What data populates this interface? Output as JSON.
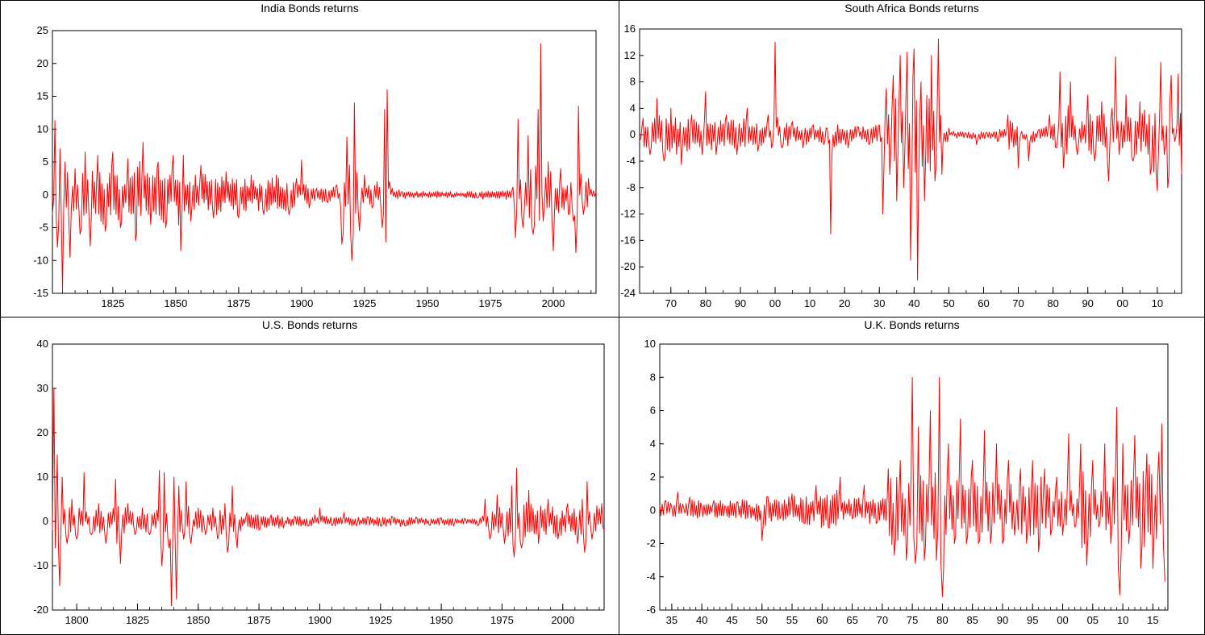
{
  "colors": {
    "series": "#ff0000",
    "axis": "#000000",
    "background": "#ffffff"
  },
  "chart_data": [
    {
      "id": "india",
      "type": "line",
      "title": "India Bonds returns",
      "xlabel": "",
      "ylabel": "",
      "xlim": [
        1801,
        2017
      ],
      "ylim": [
        -15,
        25
      ],
      "yticks": [
        "-15",
        "-10",
        "-5",
        "0",
        "5",
        "10",
        "15",
        "20",
        "25"
      ],
      "xticks": [
        {
          "value": 1825,
          "label": "1825"
        },
        {
          "value": 1850,
          "label": "1850"
        },
        {
          "value": 1875,
          "label": "1875"
        },
        {
          "value": 1900,
          "label": "1900"
        },
        {
          "value": 1925,
          "label": "1925"
        },
        {
          "value": 1950,
          "label": "1950"
        },
        {
          "value": 1975,
          "label": "1975"
        },
        {
          "value": 2000,
          "label": "2000"
        }
      ],
      "grid": false,
      "series": [
        {
          "x": [
            1801,
            1802,
            1803,
            1804,
            1805,
            1806,
            1808,
            1810,
            1812,
            1814,
            1816,
            1819,
            1822,
            1825,
            1828,
            1831,
            1834,
            1837,
            1840,
            1843,
            1846,
            1849,
            1852,
            1853,
            1856,
            1860,
            1865,
            1870,
            1875,
            1880,
            1885,
            1890,
            1895,
            1898,
            1900,
            1903,
            1906,
            1910,
            1914,
            1916,
            1918,
            1920,
            1921,
            1923,
            1925,
            1928,
            1930,
            1932,
            1933,
            1934,
            1936,
            1940,
            1945,
            1950,
            1955,
            1960,
            1965,
            1970,
            1975,
            1980,
            1984,
            1985,
            1986,
            1988,
            1990,
            1992,
            1994,
            1995,
            1996,
            1998,
            2000,
            2003,
            2006,
            2008,
            2009,
            2010,
            2012,
            2014,
            2016,
            2017
          ],
          "y": [
            -3,
            11.3,
            -8,
            7,
            -14.5,
            5,
            -9.5,
            4,
            -6,
            6.5,
            -7.8,
            6,
            -5.5,
            6.5,
            -5,
            5.5,
            -7,
            8,
            -4.5,
            5,
            -5,
            6,
            -8.5,
            6,
            -4,
            4.5,
            -3.5,
            3.5,
            -3.5,
            3,
            -3,
            3,
            -3,
            2.5,
            5.3,
            -2,
            1,
            -1,
            1.5,
            -7.5,
            8.8,
            -10,
            14,
            -5.5,
            3,
            -2,
            2,
            -5,
            13,
            16,
            1,
            0.5,
            0.3,
            0.2,
            0.4,
            0.1,
            0.2,
            -0.5,
            0.4,
            0.6,
            1.2,
            -6.5,
            11.5,
            -5,
            9,
            -6,
            13,
            23,
            -4,
            5,
            -8.5,
            4,
            -3,
            -4,
            -8.8,
            13.5,
            -3,
            2.5,
            0.6,
            0.4
          ]
        }
      ]
    },
    {
      "id": "south_africa",
      "type": "line",
      "title": "South Africa Bonds returns",
      "xlabel": "",
      "ylabel": "",
      "xlim": [
        1861,
        2017
      ],
      "ylim": [
        -24,
        16
      ],
      "yticks": [
        "-24",
        "-20",
        "-16",
        "-12",
        "-8",
        "-4",
        "0",
        "4",
        "8",
        "12",
        "16"
      ],
      "xticks": [
        {
          "value": 1870,
          "label": "70"
        },
        {
          "value": 1880,
          "label": "80"
        },
        {
          "value": 1890,
          "label": "90"
        },
        {
          "value": 1900,
          "label": "00"
        },
        {
          "value": 1910,
          "label": "10"
        },
        {
          "value": 1920,
          "label": "20"
        },
        {
          "value": 1930,
          "label": "30"
        },
        {
          "value": 1940,
          "label": "40"
        },
        {
          "value": 1950,
          "label": "50"
        },
        {
          "value": 1960,
          "label": "60"
        },
        {
          "value": 1970,
          "label": "70"
        },
        {
          "value": 1980,
          "label": "80"
        },
        {
          "value": 1990,
          "label": "90"
        },
        {
          "value": 2000,
          "label": "00"
        },
        {
          "value": 2010,
          "label": "10"
        }
      ],
      "grid": false,
      "series": [
        {
          "x": [
            1861,
            1862,
            1864,
            1866,
            1868,
            1870,
            1873,
            1876,
            1879,
            1880,
            1883,
            1886,
            1889,
            1892,
            1895,
            1898,
            1899,
            1900,
            1902,
            1905,
            1908,
            1911,
            1914,
            1915,
            1916,
            1918,
            1921,
            1924,
            1927,
            1930,
            1931,
            1932,
            1933,
            1934,
            1935,
            1936,
            1937,
            1938,
            1939,
            1940,
            1941,
            1942,
            1943,
            1945,
            1946,
            1947,
            1948,
            1950,
            1952,
            1955,
            1958,
            1961,
            1964,
            1967,
            1970,
            1971,
            1973,
            1976,
            1979,
            1981,
            1982,
            1983,
            1985,
            1987,
            1990,
            1992,
            1994,
            1996,
            1997,
            1998,
            1999,
            2001,
            2003,
            2005,
            2008,
            2010,
            2011,
            2012,
            2013,
            2014,
            2015,
            2016,
            2017
          ],
          "x_note": "",
          "y": [
            -1,
            2.5,
            -3,
            5.5,
            -4,
            4,
            -4.5,
            3,
            -3,
            6.5,
            -3,
            3,
            -3,
            4,
            -2.5,
            3,
            -2,
            14,
            -2,
            2,
            -2,
            1.5,
            -1.5,
            1,
            -15,
            1.5,
            -2,
            1.2,
            -1.5,
            1.5,
            -12,
            7,
            -6,
            9,
            -10,
            12,
            -8,
            12.5,
            -19,
            13,
            -22,
            8,
            -10,
            12,
            -7,
            14.5,
            -6,
            1,
            0.2,
            0.2,
            -1.5,
            0.3,
            -1,
            3,
            -5,
            0.5,
            -4,
            0.8,
            3,
            -2,
            9.5,
            -5,
            8,
            -3,
            6,
            -4,
            5,
            -7,
            4,
            11.8,
            -3,
            6,
            -4,
            5,
            -6,
            -8.5,
            11,
            -3,
            -8,
            9,
            -1,
            9.2,
            -6
          ]
        }
      ]
    },
    {
      "id": "us",
      "type": "line",
      "title": "U.S. Bonds returns",
      "xlabel": "",
      "ylabel": "",
      "xlim": [
        1790,
        2017
      ],
      "ylim": [
        -20,
        40
      ],
      "yticks": [
        "-20",
        "-10",
        "0",
        "10",
        "20",
        "30",
        "40"
      ],
      "xticks": [
        {
          "value": 1800,
          "label": "1800"
        },
        {
          "value": 1825,
          "label": "1825"
        },
        {
          "value": 1850,
          "label": "1850"
        },
        {
          "value": 1875,
          "label": "1875"
        },
        {
          "value": 1900,
          "label": "1900"
        },
        {
          "value": 1925,
          "label": "1925"
        },
        {
          "value": 1950,
          "label": "1950"
        },
        {
          "value": 1975,
          "label": "1975"
        },
        {
          "value": 2000,
          "label": "2000"
        }
      ],
      "grid": false,
      "series": [
        {
          "x": [
            1790,
            1790.6,
            1791.2,
            1792,
            1793,
            1794,
            1796,
            1798,
            1800,
            1803,
            1806,
            1809,
            1812,
            1815,
            1816,
            1818,
            1821,
            1824,
            1827,
            1830,
            1833,
            1834,
            1835,
            1836,
            1838,
            1839,
            1840,
            1841,
            1842,
            1844,
            1845,
            1847,
            1850,
            1853,
            1856,
            1858,
            1861,
            1862,
            1864,
            1866,
            1870,
            1875,
            1880,
            1885,
            1890,
            1895,
            1898,
            1900,
            1905,
            1910,
            1915,
            1920,
            1925,
            1930,
            1935,
            1940,
            1945,
            1950,
            1955,
            1960,
            1965,
            1968,
            1970,
            1973,
            1976,
            1979,
            1980,
            1981,
            1983,
            1986,
            1990,
            1994,
            1998,
            2002,
            2006,
            2008,
            2009,
            2010,
            2012,
            2014,
            2016,
            2017
          ],
          "y": [
            -2,
            30,
            -6,
            15,
            -14.5,
            10,
            -5,
            5,
            -4,
            11,
            -3,
            4,
            -5,
            3,
            9.5,
            -9.5,
            4,
            -3,
            3,
            -3,
            2.5,
            11.5,
            -10,
            11,
            -6,
            -19,
            10,
            -17.5,
            8,
            -4,
            9,
            -5,
            3,
            -3,
            3,
            -4,
            4,
            -7,
            8,
            -6,
            2,
            -2,
            1.5,
            -1.5,
            1,
            -1,
            1.5,
            3,
            -1,
            2,
            -1,
            1,
            -1,
            1,
            -1,
            0.8,
            -0.8,
            0.8,
            -1,
            0.5,
            -1,
            5,
            -4,
            6,
            -5,
            8,
            -8,
            12,
            -6,
            7,
            -5,
            5,
            -4,
            4,
            -5,
            5,
            -7,
            9,
            -4,
            3.5,
            4,
            -2
          ]
        }
      ]
    },
    {
      "id": "uk",
      "type": "line",
      "title": "U.K. Bonds returns",
      "xlabel": "",
      "ylabel": "",
      "xlim": [
        1933,
        2017.5
      ],
      "ylim": [
        -6,
        10
      ],
      "yticks": [
        "-6",
        "-4",
        "-2",
        "0",
        "2",
        "4",
        "6",
        "8",
        "10"
      ],
      "xticks": [
        {
          "value": 1935,
          "label": "35"
        },
        {
          "value": 1940,
          "label": "40"
        },
        {
          "value": 1945,
          "label": "45"
        },
        {
          "value": 1950,
          "label": "50"
        },
        {
          "value": 1955,
          "label": "55"
        },
        {
          "value": 1960,
          "label": "60"
        },
        {
          "value": 1965,
          "label": "65"
        },
        {
          "value": 1970,
          "label": "70"
        },
        {
          "value": 1975,
          "label": "75"
        },
        {
          "value": 1980,
          "label": "80"
        },
        {
          "value": 1985,
          "label": "85"
        },
        {
          "value": 1990,
          "label": "90"
        },
        {
          "value": 1995,
          "label": "95"
        },
        {
          "value": 2000,
          "label": "00"
        },
        {
          "value": 2005,
          "label": "05"
        },
        {
          "value": 2010,
          "label": "10"
        },
        {
          "value": 2015,
          "label": "15"
        }
      ],
      "grid": false,
      "series": [
        {
          "x": [
            1933,
            1934,
            1935,
            1936,
            1937,
            1938,
            1940,
            1942,
            1944,
            1946,
            1948,
            1950,
            1951,
            1953,
            1955,
            1957,
            1959,
            1961,
            1963,
            1965,
            1967,
            1969,
            1971,
            1972,
            1973,
            1974,
            1975,
            1975.5,
            1976,
            1977,
            1978,
            1979,
            1979.5,
            1980,
            1981,
            1982,
            1983,
            1984,
            1985,
            1986,
            1987,
            1988,
            1989,
            1990,
            1991,
            1992,
            1993,
            1994,
            1995,
            1996,
            1997,
            1998,
            1999,
            2000,
            2001,
            2002,
            2003,
            2004,
            2005,
            2006,
            2007,
            2008,
            2009,
            2009.5,
            2010,
            2011,
            2012,
            2013,
            2014,
            2015,
            2016,
            2016.5,
            2017
          ],
          "y": [
            0.3,
            0.6,
            0.2,
            1.1,
            0.1,
            0.8,
            0.2,
            0.6,
            0.2,
            0.5,
            0.3,
            -1.8,
            0.8,
            -0.5,
            1,
            -0.8,
            1.5,
            -1,
            2,
            -0.5,
            1.5,
            -0.8,
            2.5,
            -2.7,
            3,
            -3,
            8,
            -3.2,
            5,
            -3,
            6,
            -3,
            8,
            -5.2,
            4,
            -2,
            5.5,
            -2,
            3,
            -2,
            4.8,
            -2,
            4,
            -2,
            3,
            -1.5,
            2.5,
            -2,
            3,
            -2.5,
            2.5,
            -1.5,
            2,
            -1.5,
            4.6,
            -1,
            4,
            -3.3,
            3,
            -1,
            4,
            -2,
            6.2,
            -5.1,
            4,
            -2,
            4.5,
            -3.5,
            3.4,
            -3.5,
            3.5,
            5.2,
            -4.3
          ]
        }
      ]
    }
  ]
}
